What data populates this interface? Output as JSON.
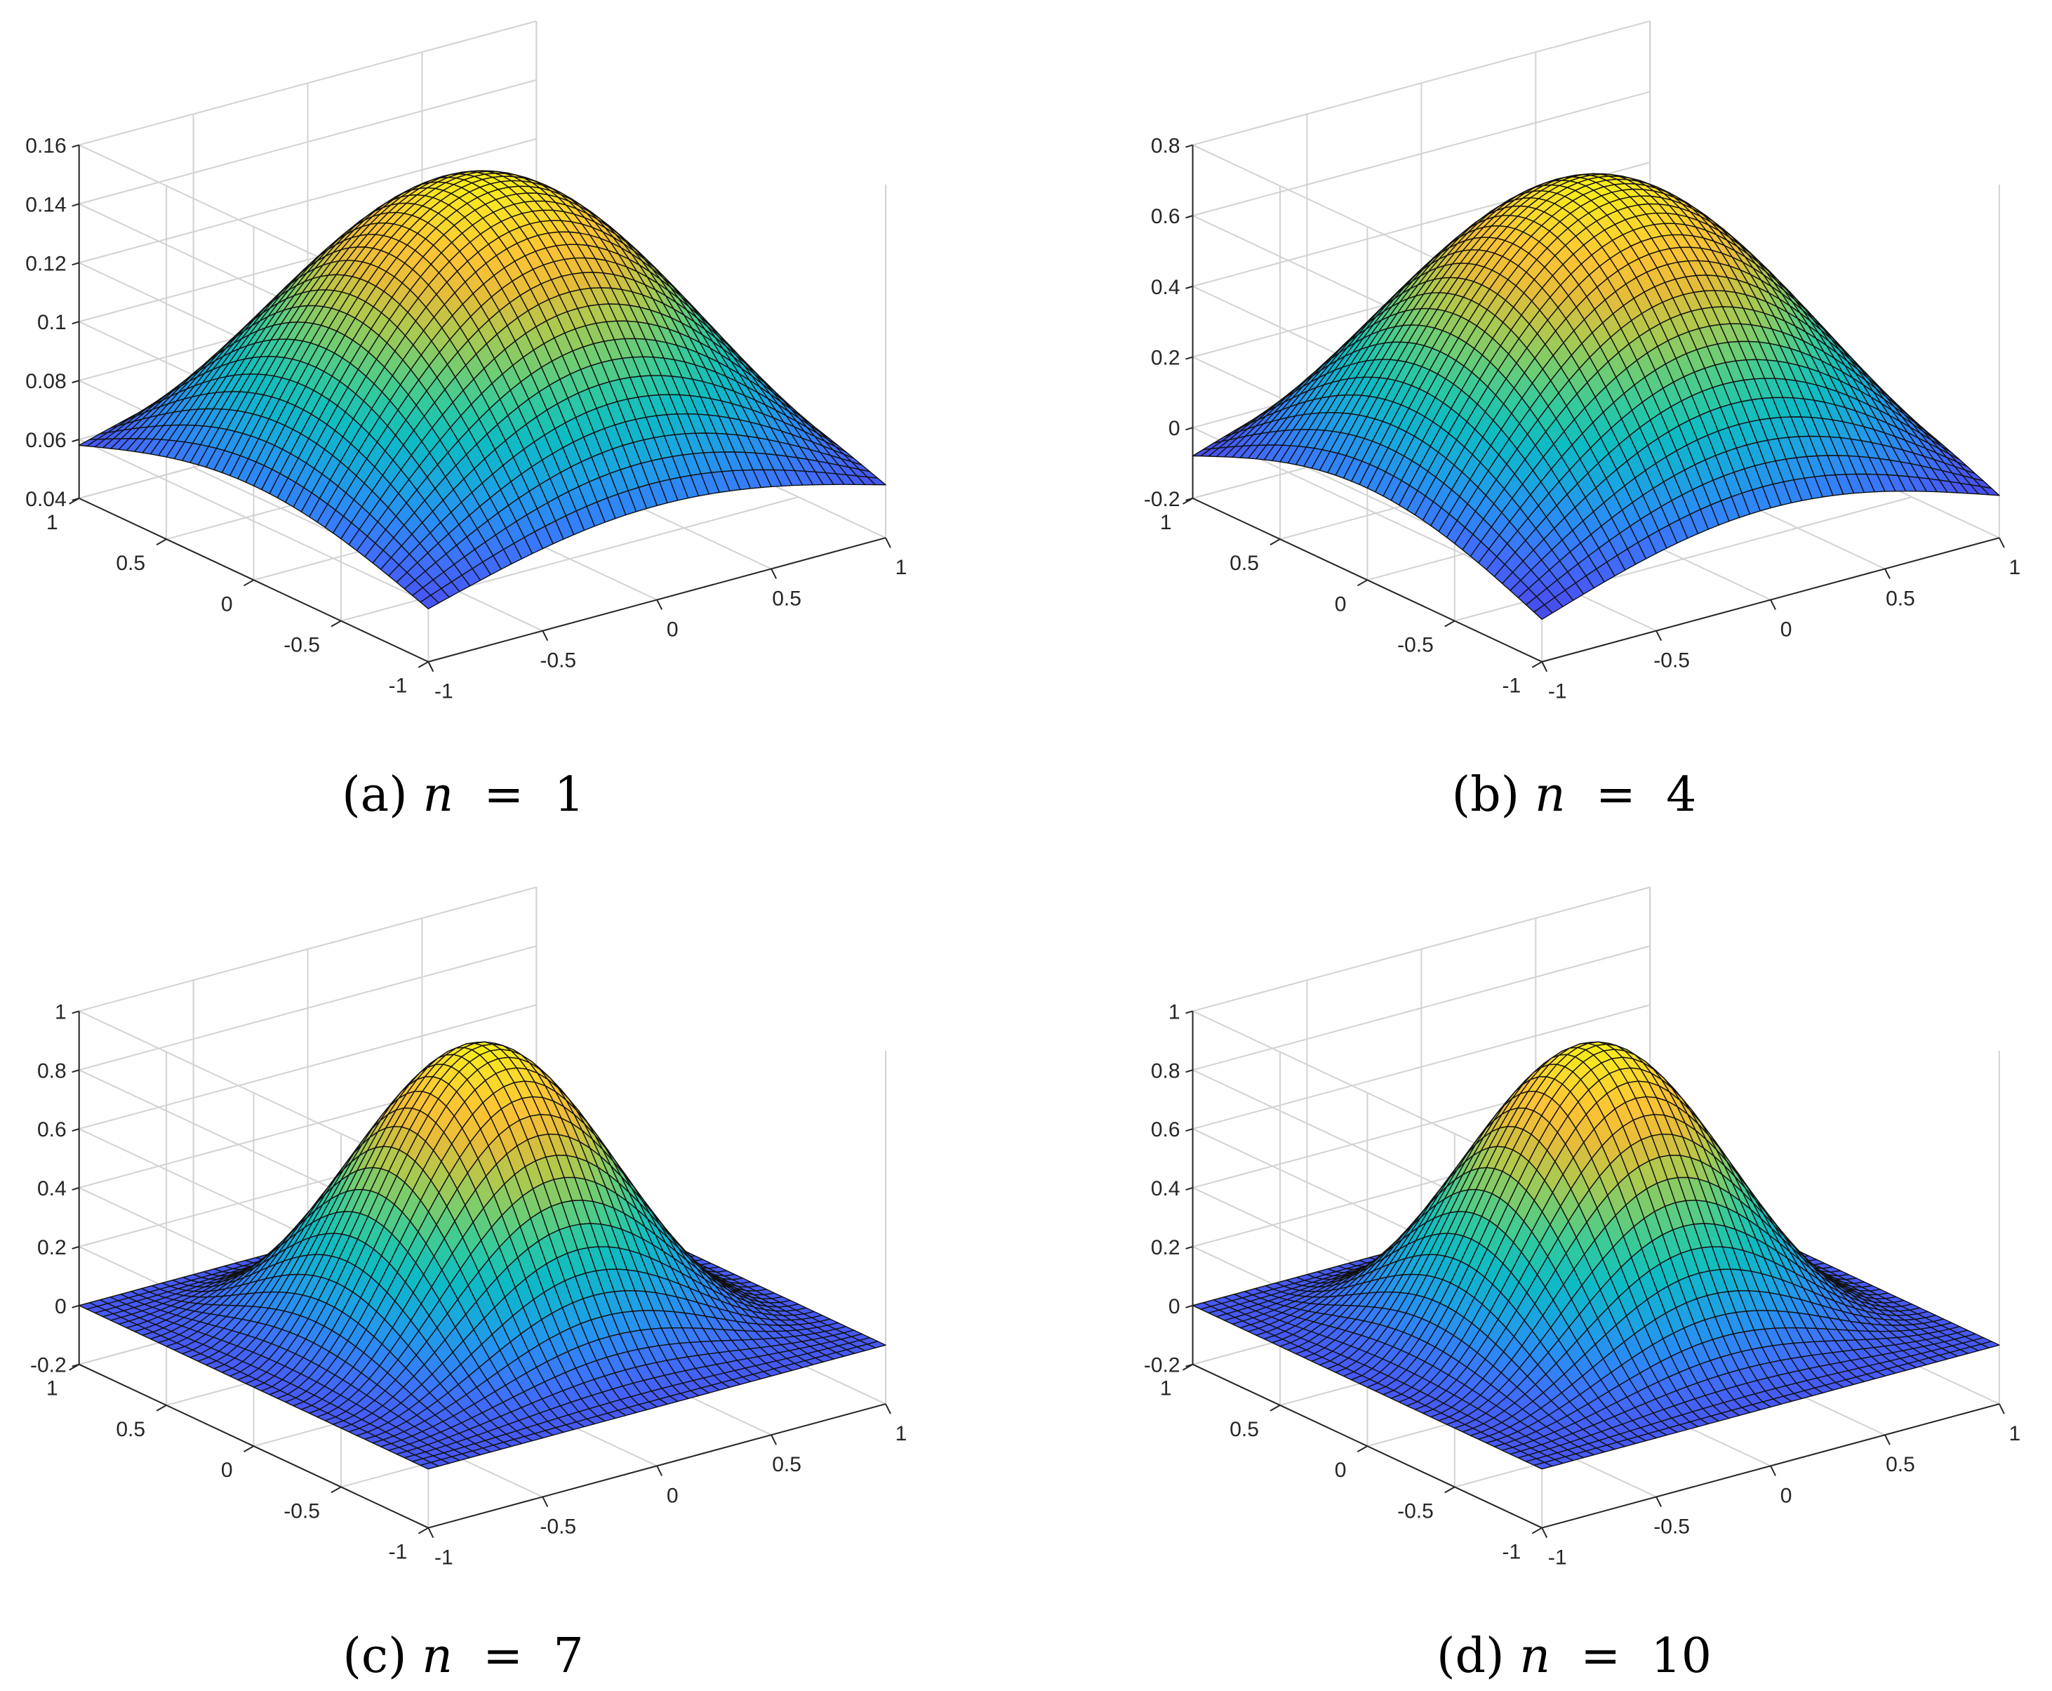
{
  "chart_data": [
    {
      "type": "surface",
      "caption": {
        "label": "(a)",
        "var": "n",
        "eq": " = ",
        "value": "1"
      },
      "n": 1,
      "z_ticks": [
        "0.04",
        "0.06",
        "0.08",
        "0.1",
        "0.12",
        "0.14",
        "0.16"
      ],
      "zlim": [
        0.04,
        0.16
      ],
      "x_ticks": [
        "-1",
        "-0.5",
        "0",
        "0.5",
        "1"
      ],
      "y_ticks": [
        "-1",
        "-0.5",
        "0",
        "0.5",
        "1"
      ],
      "xlim": [
        -1,
        1
      ],
      "ylim": [
        -1,
        1
      ],
      "surface": {
        "peak": 0.155,
        "edge_mid": 0.072,
        "corner": 0.058,
        "colormap": "parula",
        "grid": true
      }
    },
    {
      "type": "surface",
      "caption": {
        "label": "(b)",
        "var": "n",
        "eq": " = ",
        "value": "4"
      },
      "n": 4,
      "z_ticks": [
        "-0.2",
        "0",
        "0.2",
        "0.4",
        "0.6",
        "0.8"
      ],
      "zlim": [
        -0.2,
        0.8
      ],
      "x_ticks": [
        "-1",
        "-0.5",
        "0",
        "0.5",
        "1"
      ],
      "y_ticks": [
        "-1",
        "-0.5",
        "0",
        "0.5",
        "1"
      ],
      "xlim": [
        -1,
        1
      ],
      "ylim": [
        -1,
        1
      ],
      "surface": {
        "peak": 0.75,
        "edge_mid": 0.06,
        "corner": -0.08,
        "colormap": "parula",
        "grid": true
      }
    },
    {
      "type": "surface",
      "caption": {
        "label": "(c)",
        "var": "n",
        "eq": " = ",
        "value": "7"
      },
      "n": 7,
      "z_ticks": [
        "-0.2",
        "0",
        "0.2",
        "0.4",
        "0.6",
        "0.8",
        "1"
      ],
      "zlim": [
        -0.2,
        1
      ],
      "x_ticks": [
        "-1",
        "-0.5",
        "0",
        "0.5",
        "1"
      ],
      "y_ticks": [
        "-1",
        "-0.5",
        "0",
        "0.5",
        "1"
      ],
      "xlim": [
        -1,
        1
      ],
      "ylim": [
        -1,
        1
      ],
      "surface": {
        "peak": 0.95,
        "edge_mid": 0,
        "corner": 0,
        "colormap": "parula",
        "grid": true
      }
    },
    {
      "type": "surface",
      "caption": {
        "label": "(d)",
        "var": "n",
        "eq": " = ",
        "value": "10"
      },
      "n": 10,
      "z_ticks": [
        "-0.2",
        "0",
        "0.2",
        "0.4",
        "0.6",
        "0.8",
        "1"
      ],
      "zlim": [
        -0.2,
        1
      ],
      "x_ticks": [
        "-1",
        "-0.5",
        "0",
        "0.5",
        "1"
      ],
      "y_ticks": [
        "-1",
        "-0.5",
        "0",
        "0.5",
        "1"
      ],
      "xlim": [
        -1,
        1
      ],
      "ylim": [
        -1,
        1
      ],
      "surface": {
        "peak": 0.95,
        "edge_mid": 0,
        "corner": 0,
        "colormap": "parula",
        "grid": true
      }
    }
  ]
}
